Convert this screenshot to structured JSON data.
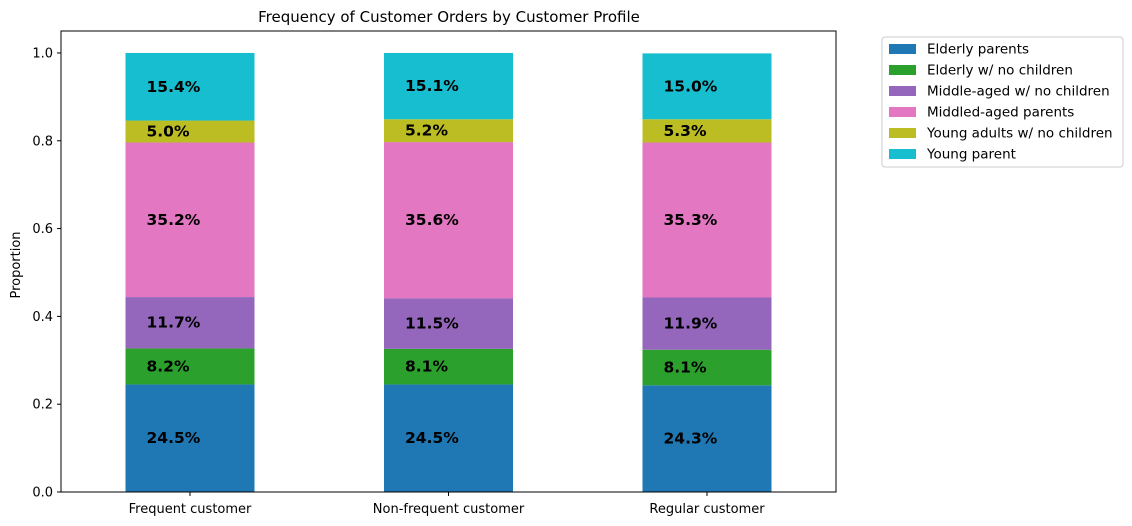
{
  "chart_data": {
    "type": "bar",
    "stacked": true,
    "title": "Frequency of Customer Orders by Customer Profile",
    "xlabel": "",
    "ylabel": "Proportion",
    "ylim": [
      0,
      1.05
    ],
    "yticks": [
      "0.0",
      "0.2",
      "0.4",
      "0.6",
      "0.8",
      "1.0"
    ],
    "grid": false,
    "legend_position": "outside-top-right",
    "categories": [
      "Frequent customer",
      "Non-frequent customer",
      "Regular customer"
    ],
    "series": [
      {
        "name": "Elderly parents",
        "color": "#1f77b4",
        "values": [
          0.245,
          0.245,
          0.243
        ],
        "labels": [
          "24.5%",
          "24.5%",
          "24.3%"
        ]
      },
      {
        "name": "Elderly w/ no children",
        "color": "#2ca02c",
        "values": [
          0.082,
          0.081,
          0.081
        ],
        "labels": [
          "8.2%",
          "8.1%",
          "8.1%"
        ]
      },
      {
        "name": "Middle-aged w/ no children",
        "color": "#9467bd",
        "values": [
          0.117,
          0.115,
          0.119
        ],
        "labels": [
          "11.7%",
          "11.5%",
          "11.9%"
        ]
      },
      {
        "name": "Middled-aged parents",
        "color": "#e377c2",
        "values": [
          0.352,
          0.356,
          0.353
        ],
        "labels": [
          "35.2%",
          "35.6%",
          "35.3%"
        ]
      },
      {
        "name": "Young adults w/ no children",
        "color": "#bcbd22",
        "values": [
          0.05,
          0.052,
          0.053
        ],
        "labels": [
          "5.0%",
          "5.2%",
          "5.3%"
        ]
      },
      {
        "name": "Young parent",
        "color": "#17becf",
        "values": [
          0.154,
          0.151,
          0.15
        ],
        "labels": [
          "15.4%",
          "15.1%",
          "15.0%"
        ]
      }
    ]
  }
}
